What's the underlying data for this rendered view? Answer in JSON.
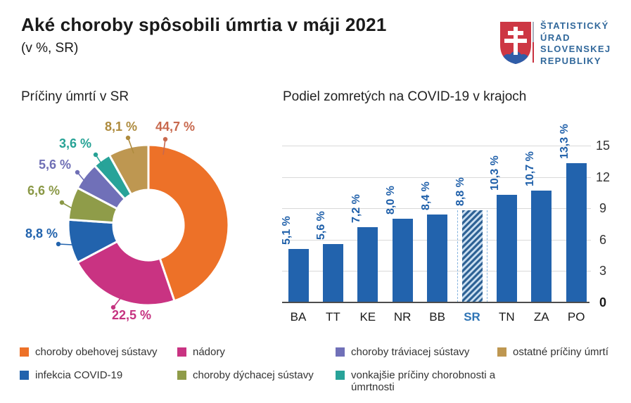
{
  "header": {
    "title": "Aké choroby spôsobili úmrtia v máji 2021",
    "subtitle": "(v %, SR)"
  },
  "logo": {
    "lines": [
      "ŠTATISTICKÝ",
      "ÚRAD",
      "SLOVENSKEJ",
      "REPUBLIKY"
    ],
    "text_color": "#31689b",
    "shield_red": "#cd3744",
    "shield_blue": "#2f5da8",
    "divider_top_color": "#a7b0bc",
    "divider_bottom_color": "#c9313f"
  },
  "chart_data": [
    {
      "type": "pie",
      "donut": true,
      "title": "Príčiny úmrtí v SR",
      "unit": "%",
      "slices": [
        {
          "label": "choroby obehovej sústavy",
          "value": 44.7,
          "display": "44,7 %",
          "color": "#ed7128",
          "label_color": "#c8694e"
        },
        {
          "label": "nádory",
          "value": 22.5,
          "display": "22,5 %",
          "color": "#c93382",
          "label_color": "#c53380"
        },
        {
          "label": "infekcia COVID-19",
          "value": 8.8,
          "display": "8,8 %",
          "color": "#2263ad",
          "label_color": "#2263ad"
        },
        {
          "label": "choroby dýchacej sústavy",
          "value": 6.6,
          "display": "6,6 %",
          "color": "#8f9c49",
          "label_color": "#8a9846"
        },
        {
          "label": "choroby tráviacej sústavy",
          "value": 5.6,
          "display": "5,6 %",
          "color": "#7070b8",
          "label_color": "#6f6fb5"
        },
        {
          "label": "vonkajšie príčiny chorobnosti a úmrtnosti",
          "value": 3.6,
          "display": "3,6 %",
          "color": "#28a399",
          "label_color": "#26a295"
        },
        {
          "label": "ostatné príčiny úmrtí",
          "value": 8.1,
          "display": "8,1 %",
          "color": "#be9751",
          "label_color": "#ae8b3e"
        }
      ]
    },
    {
      "type": "bar",
      "title": "Podiel zomretých na COVID-19 v krajoch",
      "unit": "%",
      "categories": [
        "BA",
        "TT",
        "KE",
        "NR",
        "BB",
        "SR",
        "TN",
        "ZA",
        "PO"
      ],
      "values": [
        5.1,
        5.6,
        7.2,
        8.0,
        8.4,
        8.8,
        10.3,
        10.7,
        13.3
      ],
      "display_values": [
        "5,1 %",
        "5,6 %",
        "7,2 %",
        "8,0 %",
        "8,4 %",
        "8,8 %",
        "10,3 %",
        "10,7 %",
        "13,3 %"
      ],
      "bar_color": "#2263ad",
      "value_label_color": "#1e5fa9",
      "highlight_category": "SR",
      "highlight_label_color": "#2e74b5",
      "highlight_hatch": {
        "stripe": "#2e6295",
        "bg": "#c9ddef",
        "edge_line": "#85b4df"
      },
      "ylim": [
        0,
        15
      ],
      "yticks": [
        0,
        3,
        6,
        9,
        12,
        15
      ],
      "grid": true,
      "axis_side": "right",
      "legend_position": "none"
    }
  ],
  "legend": {
    "items": [
      {
        "label": "choroby obehovej sústavy",
        "color": "#ed7128"
      },
      {
        "label": "nádory",
        "color": "#c93382"
      },
      {
        "label": "choroby tráviacej sústavy",
        "color": "#7070b8"
      },
      {
        "label": "ostatné príčiny úmrtí",
        "color": "#be9751"
      },
      {
        "label": "infekcia COVID-19",
        "color": "#2263ad"
      },
      {
        "label": "choroby dýchacej sústavy",
        "color": "#8f9c49"
      },
      {
        "label": "vonkajšie príčiny chorobnosti a úmrtnosti",
        "color": "#28a399"
      }
    ]
  }
}
